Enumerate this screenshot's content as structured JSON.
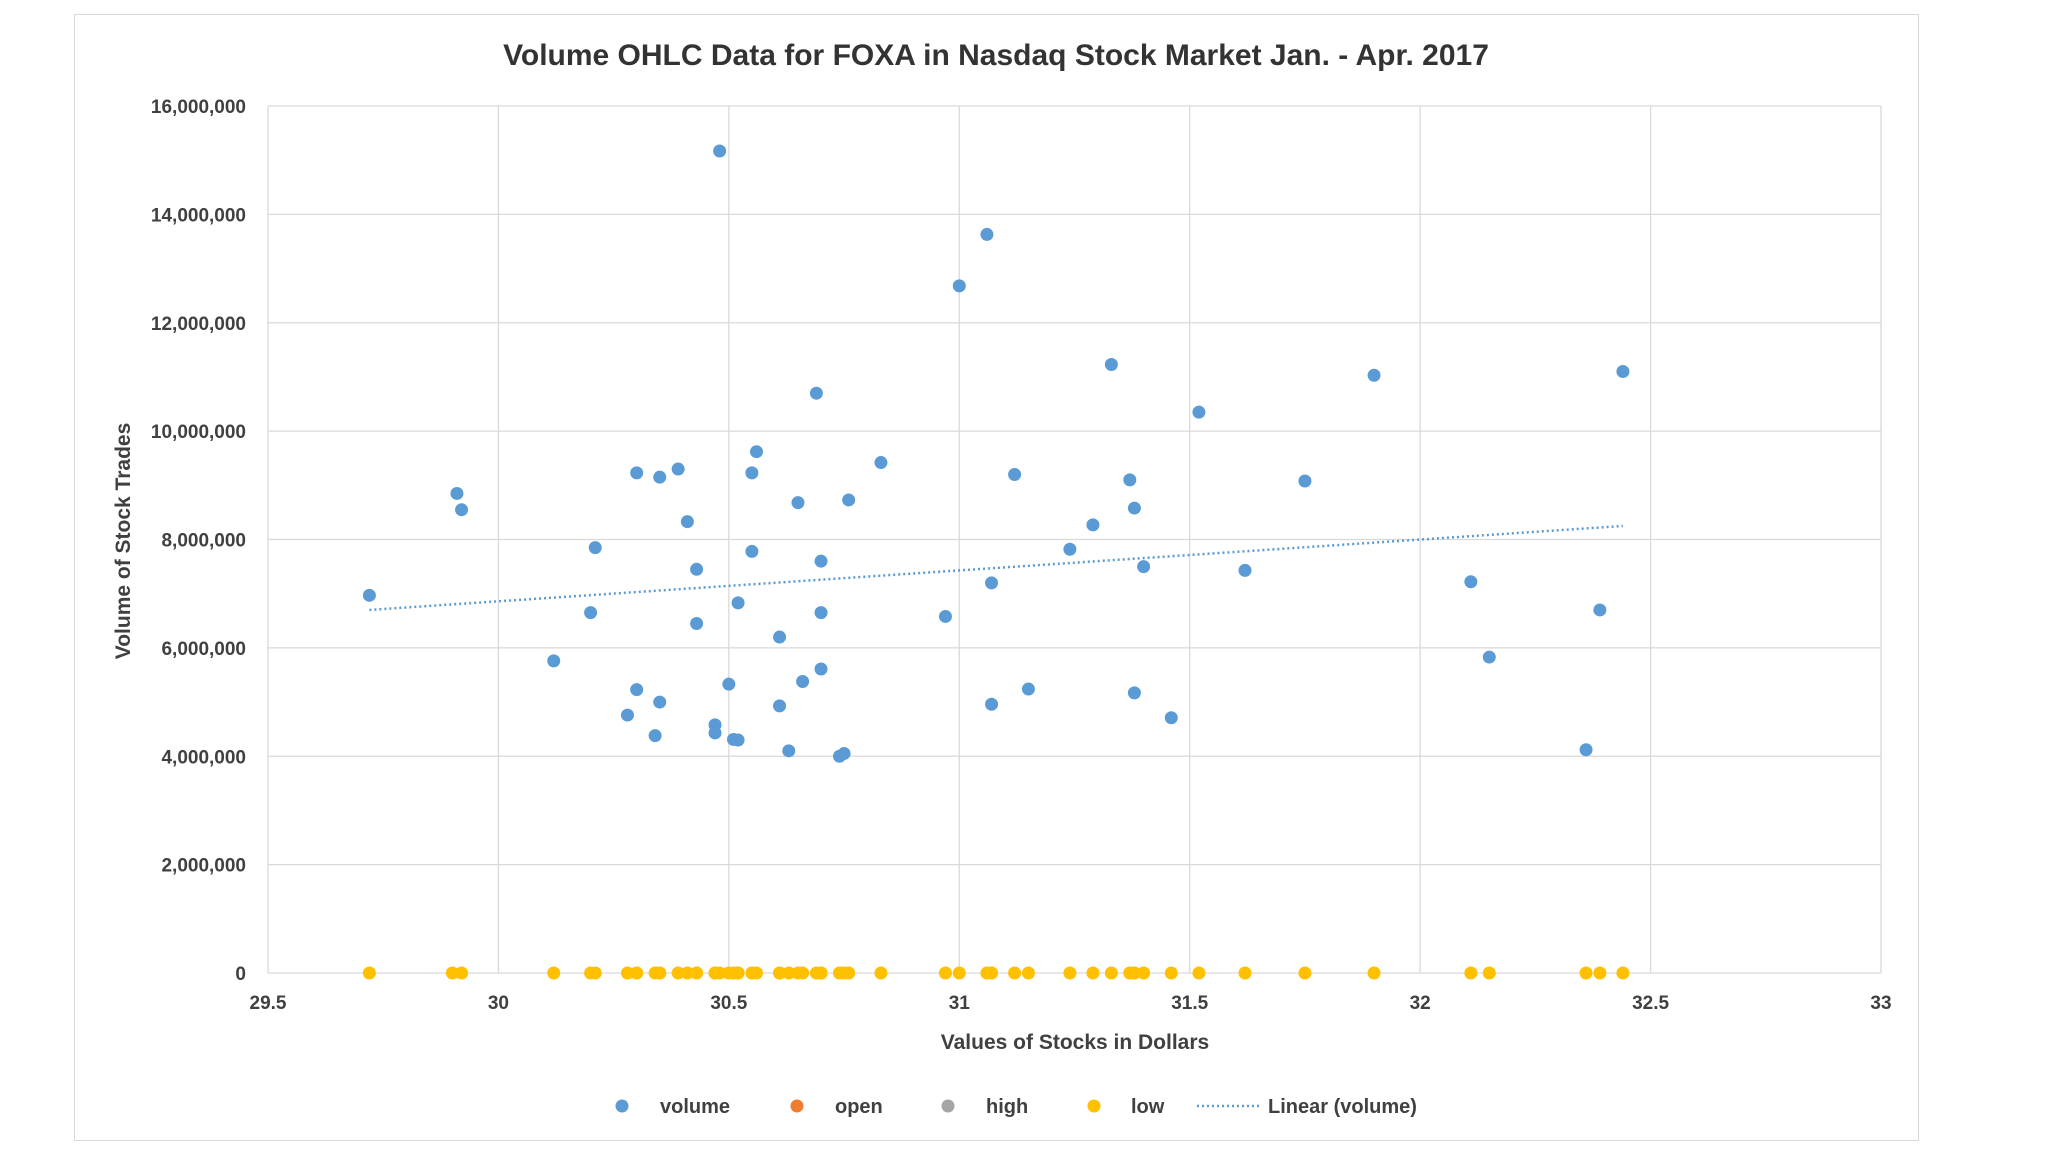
{
  "chart_data": {
    "type": "scatter",
    "title": "Volume OHLC Data for FOXA in Nasdaq Stock Market Jan. - Apr. 2017",
    "xlabel": "Values of Stocks in Dollars",
    "ylabel": "Volume of Stock Trades",
    "xlim": [
      29.5,
      33
    ],
    "ylim": [
      0,
      16000000
    ],
    "x_ticks": [
      "29.5",
      "30",
      "30.5",
      "31",
      "31.5",
      "32",
      "32.5",
      "33"
    ],
    "x_tick_values": [
      29.5,
      30,
      30.5,
      31,
      31.5,
      32,
      32.5,
      33
    ],
    "y_ticks": [
      "0",
      "2,000,000",
      "4,000,000",
      "6,000,000",
      "8,000,000",
      "10,000,000",
      "12,000,000",
      "14,000,000",
      "16,000,000"
    ],
    "y_tick_values": [
      0,
      2000000,
      4000000,
      6000000,
      8000000,
      10000000,
      12000000,
      14000000,
      16000000
    ],
    "grid": true,
    "legend_position": "bottom",
    "series": [
      {
        "name": "volume",
        "color": "#5b9bd5",
        "points": [
          [
            29.72,
            6970000
          ],
          [
            29.91,
            8850000
          ],
          [
            29.92,
            8550000
          ],
          [
            30.12,
            5760000
          ],
          [
            30.2,
            6650000
          ],
          [
            30.21,
            7850000
          ],
          [
            30.28,
            4760000
          ],
          [
            30.3,
            9230000
          ],
          [
            30.3,
            5230000
          ],
          [
            30.34,
            4380000
          ],
          [
            30.35,
            9150000
          ],
          [
            30.35,
            5000000
          ],
          [
            30.39,
            9300000
          ],
          [
            30.41,
            8330000
          ],
          [
            30.43,
            7450000
          ],
          [
            30.43,
            6450000
          ],
          [
            30.47,
            4430000
          ],
          [
            30.47,
            4580000
          ],
          [
            30.48,
            15170000
          ],
          [
            30.5,
            5330000
          ],
          [
            30.51,
            4310000
          ],
          [
            30.52,
            4300000
          ],
          [
            30.52,
            6830000
          ],
          [
            30.55,
            9230000
          ],
          [
            30.55,
            7780000
          ],
          [
            30.56,
            9620000
          ],
          [
            30.61,
            6200000
          ],
          [
            30.61,
            4930000
          ],
          [
            30.63,
            4100000
          ],
          [
            30.65,
            8680000
          ],
          [
            30.66,
            5380000
          ],
          [
            30.69,
            10700000
          ],
          [
            30.7,
            7600000
          ],
          [
            30.7,
            6650000
          ],
          [
            30.7,
            5610000
          ],
          [
            30.74,
            4000000
          ],
          [
            30.75,
            4050000
          ],
          [
            30.76,
            8730000
          ],
          [
            30.83,
            9420000
          ],
          [
            30.97,
            6580000
          ],
          [
            31.0,
            12680000
          ],
          [
            31.06,
            13630000
          ],
          [
            31.07,
            7200000
          ],
          [
            31.07,
            4960000
          ],
          [
            31.12,
            9200000
          ],
          [
            31.15,
            5240000
          ],
          [
            31.24,
            7820000
          ],
          [
            31.29,
            8270000
          ],
          [
            31.33,
            11230000
          ],
          [
            31.37,
            9100000
          ],
          [
            31.38,
            8580000
          ],
          [
            31.38,
            5170000
          ],
          [
            31.4,
            7500000
          ],
          [
            31.46,
            4710000
          ],
          [
            31.52,
            10350000
          ],
          [
            31.62,
            7430000
          ],
          [
            31.75,
            9080000
          ],
          [
            31.9,
            11030000
          ],
          [
            32.11,
            7220000
          ],
          [
            32.15,
            5830000
          ],
          [
            32.36,
            4120000
          ],
          [
            32.39,
            6700000
          ],
          [
            32.44,
            11100000
          ]
        ]
      },
      {
        "name": "open",
        "color": "#ed7d31",
        "points": []
      },
      {
        "name": "high",
        "color": "#a5a5a5",
        "points": []
      },
      {
        "name": "low",
        "color": "#ffc000",
        "x": [
          29.72,
          29.9,
          29.92,
          30.12,
          30.2,
          30.21,
          30.28,
          30.3,
          30.3,
          30.34,
          30.35,
          30.35,
          30.39,
          30.41,
          30.43,
          30.43,
          30.47,
          30.47,
          30.48,
          30.5,
          30.51,
          30.52,
          30.52,
          30.55,
          30.55,
          30.56,
          30.61,
          30.61,
          30.63,
          30.65,
          30.66,
          30.69,
          30.7,
          30.7,
          30.7,
          30.74,
          30.75,
          30.76,
          30.83,
          30.97,
          31.0,
          31.06,
          31.07,
          31.07,
          31.12,
          31.15,
          31.24,
          31.29,
          31.33,
          31.37,
          31.38,
          31.38,
          31.4,
          31.46,
          31.52,
          31.62,
          31.75,
          31.9,
          32.11,
          32.15,
          32.36,
          32.39,
          32.44
        ],
        "y_value": 0
      },
      {
        "name": "Linear (volume)",
        "color": "#5b9bd5",
        "style": "dotted",
        "line": [
          [
            29.72,
            6700000
          ],
          [
            32.44,
            8250000
          ]
        ]
      }
    ]
  }
}
